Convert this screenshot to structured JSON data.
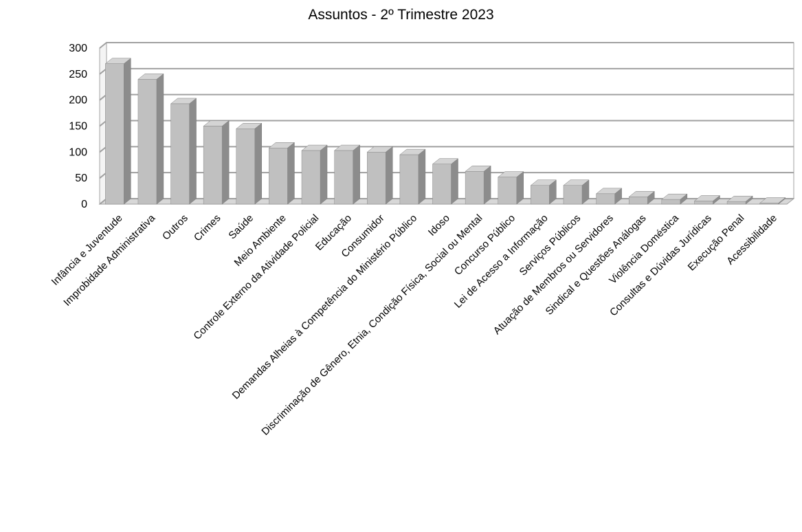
{
  "chart_data": {
    "type": "bar",
    "title": "Assuntos - 2º Trimestre 2023",
    "xlabel": "",
    "ylabel": "",
    "ylim": [
      0,
      300
    ],
    "yticks": [
      0,
      50,
      100,
      150,
      200,
      250,
      300
    ],
    "grid": true,
    "legend": "none",
    "categories": [
      "Infância e Juventude",
      "Improbidade Administrativa",
      "Outros",
      "Crimes",
      "Saúde",
      "Meio Ambiente",
      "Controle Externo da Atividade Policial",
      "Educação",
      "Consumidor",
      "Demandas Alheias à Competência do Ministério Público",
      "Idoso",
      "Discriminação de Gênero, Etnia, Condição Física, Social ou Mental",
      "Concurso Público",
      "Lei de Acesso a Informação",
      "Serviços Públicos",
      "Atuação de Membros ou Servidores",
      "Sindical e Questões Análogas",
      "Violência Doméstica",
      "Consultas e Dúvidas Jurídicas",
      "Execução Penal",
      "Acessibilidade"
    ],
    "values": [
      270,
      240,
      193,
      150,
      145,
      108,
      103,
      103,
      100,
      95,
      77,
      63,
      52,
      36,
      36,
      20,
      14,
      9,
      6,
      5,
      2
    ],
    "colors": {
      "bar_front": "#c0c0c0",
      "bar_side": "#8c8c8c",
      "bar_top": "#d4d4d4",
      "grid": "#a0a0a0",
      "wall": "#ffffff",
      "floor": "#d8d8d8"
    }
  }
}
